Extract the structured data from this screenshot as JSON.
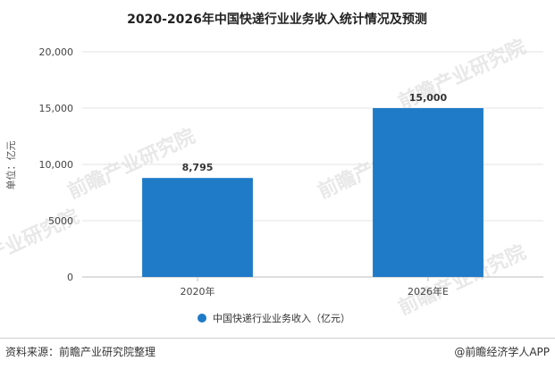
{
  "chart_data": {
    "type": "bar",
    "title": "2020-2026年中国快递行业业务收入统计情况及预测",
    "ylabel": "单位：亿元",
    "xlabel": "",
    "categories": [
      "2020年",
      "2026年E"
    ],
    "series": [
      {
        "name": "中国快递行业业务收入（亿元）",
        "values": [
          8795,
          15000
        ],
        "labels": [
          "8,795",
          "15,000"
        ],
        "color": "#1f7bc7"
      }
    ],
    "ylim": [
      0,
      20000
    ],
    "yticks": [
      {
        "value": 0,
        "label": "0"
      },
      {
        "value": 5000,
        "label": "5000"
      },
      {
        "value": 10000,
        "label": "10,000"
      },
      {
        "value": 15000,
        "label": "15,000"
      },
      {
        "value": 20000,
        "label": "20,000"
      }
    ],
    "grid": true,
    "legend_position": "bottom"
  },
  "watermark": "前瞻产业研究院",
  "footer": {
    "source": "资料来源：前瞻产业研究院整理",
    "brand": "@前瞻经济学人APP"
  }
}
